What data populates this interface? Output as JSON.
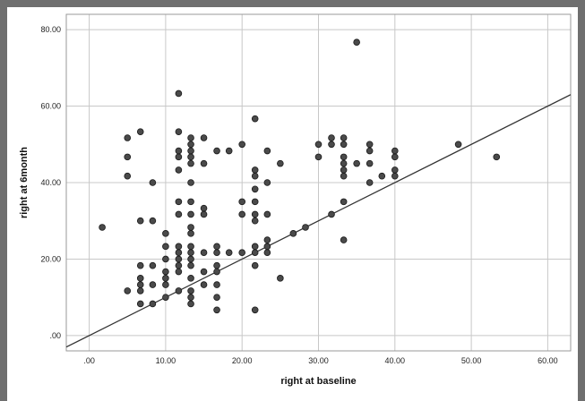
{
  "chart_data": {
    "type": "scatter",
    "title": "",
    "xlabel": "right at baseline",
    "ylabel": "right at 6month",
    "xlim": [
      -3,
      63
    ],
    "ylim": [
      -4,
      84
    ],
    "x_ticks": [
      0,
      10,
      20,
      30,
      40,
      50,
      60
    ],
    "x_tick_labels": [
      ".00",
      "10.00",
      "20.00",
      "30.00",
      "40.00",
      "50.00",
      "60.00"
    ],
    "y_ticks": [
      0,
      20,
      40,
      60,
      80
    ],
    "y_tick_labels": [
      ".00",
      "20.00",
      "40.00",
      "60.00",
      "80.00"
    ],
    "grid": true,
    "reference_line": {
      "x": [
        -3,
        63
      ],
      "y": [
        -3,
        63
      ]
    },
    "points": [
      [
        1.7,
        28.3
      ],
      [
        5.0,
        51.7
      ],
      [
        5.0,
        46.7
      ],
      [
        5.0,
        41.7
      ],
      [
        5.0,
        11.7
      ],
      [
        6.7,
        53.3
      ],
      [
        6.7,
        30.0
      ],
      [
        6.7,
        18.3
      ],
      [
        6.7,
        15.0
      ],
      [
        6.7,
        13.3
      ],
      [
        6.7,
        11.7
      ],
      [
        6.7,
        8.3
      ],
      [
        8.3,
        40.0
      ],
      [
        8.3,
        30.0
      ],
      [
        8.3,
        18.3
      ],
      [
        8.3,
        13.3
      ],
      [
        8.3,
        8.3
      ],
      [
        10.0,
        26.7
      ],
      [
        10.0,
        23.3
      ],
      [
        10.0,
        20.0
      ],
      [
        10.0,
        16.7
      ],
      [
        10.0,
        15.0
      ],
      [
        10.0,
        13.3
      ],
      [
        10.0,
        10.0
      ],
      [
        11.7,
        63.3
      ],
      [
        11.7,
        53.3
      ],
      [
        11.7,
        48.3
      ],
      [
        11.7,
        46.7
      ],
      [
        11.7,
        43.3
      ],
      [
        11.7,
        35.0
      ],
      [
        11.7,
        31.7
      ],
      [
        11.7,
        23.3
      ],
      [
        11.7,
        21.7
      ],
      [
        11.7,
        20.0
      ],
      [
        11.7,
        18.3
      ],
      [
        11.7,
        16.7
      ],
      [
        11.7,
        11.7
      ],
      [
        13.3,
        51.7
      ],
      [
        13.3,
        50.0
      ],
      [
        13.3,
        48.3
      ],
      [
        13.3,
        46.7
      ],
      [
        13.3,
        45.0
      ],
      [
        13.3,
        40.0
      ],
      [
        13.3,
        35.0
      ],
      [
        13.3,
        31.7
      ],
      [
        13.3,
        28.3
      ],
      [
        13.3,
        26.7
      ],
      [
        13.3,
        23.3
      ],
      [
        13.3,
        21.7
      ],
      [
        13.3,
        20.0
      ],
      [
        13.3,
        18.3
      ],
      [
        13.3,
        15.0
      ],
      [
        13.3,
        11.7
      ],
      [
        13.3,
        10.0
      ],
      [
        13.3,
        8.3
      ],
      [
        15.0,
        51.7
      ],
      [
        15.0,
        45.0
      ],
      [
        15.0,
        33.3
      ],
      [
        15.0,
        31.7
      ],
      [
        15.0,
        21.7
      ],
      [
        15.0,
        16.7
      ],
      [
        15.0,
        13.3
      ],
      [
        16.7,
        48.3
      ],
      [
        16.7,
        23.3
      ],
      [
        16.7,
        21.7
      ],
      [
        16.7,
        18.3
      ],
      [
        16.7,
        16.7
      ],
      [
        16.7,
        13.3
      ],
      [
        16.7,
        10.0
      ],
      [
        16.7,
        6.7
      ],
      [
        18.3,
        48.3
      ],
      [
        18.3,
        21.7
      ],
      [
        20.0,
        50.0
      ],
      [
        20.0,
        35.0
      ],
      [
        20.0,
        31.7
      ],
      [
        20.0,
        21.7
      ],
      [
        21.7,
        56.7
      ],
      [
        21.7,
        43.3
      ],
      [
        21.7,
        41.7
      ],
      [
        21.7,
        38.3
      ],
      [
        21.7,
        35.0
      ],
      [
        21.7,
        31.7
      ],
      [
        21.7,
        30.0
      ],
      [
        21.7,
        23.3
      ],
      [
        21.7,
        21.7
      ],
      [
        21.7,
        18.3
      ],
      [
        21.7,
        6.7
      ],
      [
        23.3,
        48.3
      ],
      [
        23.3,
        40.0
      ],
      [
        23.3,
        31.7
      ],
      [
        23.3,
        25.0
      ],
      [
        23.3,
        23.3
      ],
      [
        23.3,
        21.7
      ],
      [
        25.0,
        45.0
      ],
      [
        25.0,
        15.0
      ],
      [
        26.7,
        26.7
      ],
      [
        28.3,
        28.3
      ],
      [
        30.0,
        50.0
      ],
      [
        30.0,
        46.7
      ],
      [
        31.7,
        51.7
      ],
      [
        31.7,
        50.0
      ],
      [
        31.7,
        31.7
      ],
      [
        33.3,
        51.7
      ],
      [
        33.3,
        50.0
      ],
      [
        33.3,
        46.7
      ],
      [
        33.3,
        45.0
      ],
      [
        33.3,
        43.3
      ],
      [
        33.3,
        41.7
      ],
      [
        33.3,
        35.0
      ],
      [
        33.3,
        25.0
      ],
      [
        35.0,
        76.7
      ],
      [
        35.0,
        45.0
      ],
      [
        36.7,
        50.0
      ],
      [
        36.7,
        48.3
      ],
      [
        36.7,
        45.0
      ],
      [
        36.7,
        40.0
      ],
      [
        38.3,
        41.7
      ],
      [
        40.0,
        48.3
      ],
      [
        40.0,
        46.7
      ],
      [
        40.0,
        43.3
      ],
      [
        40.0,
        41.7
      ],
      [
        48.3,
        50.0
      ],
      [
        53.3,
        46.7
      ]
    ]
  }
}
